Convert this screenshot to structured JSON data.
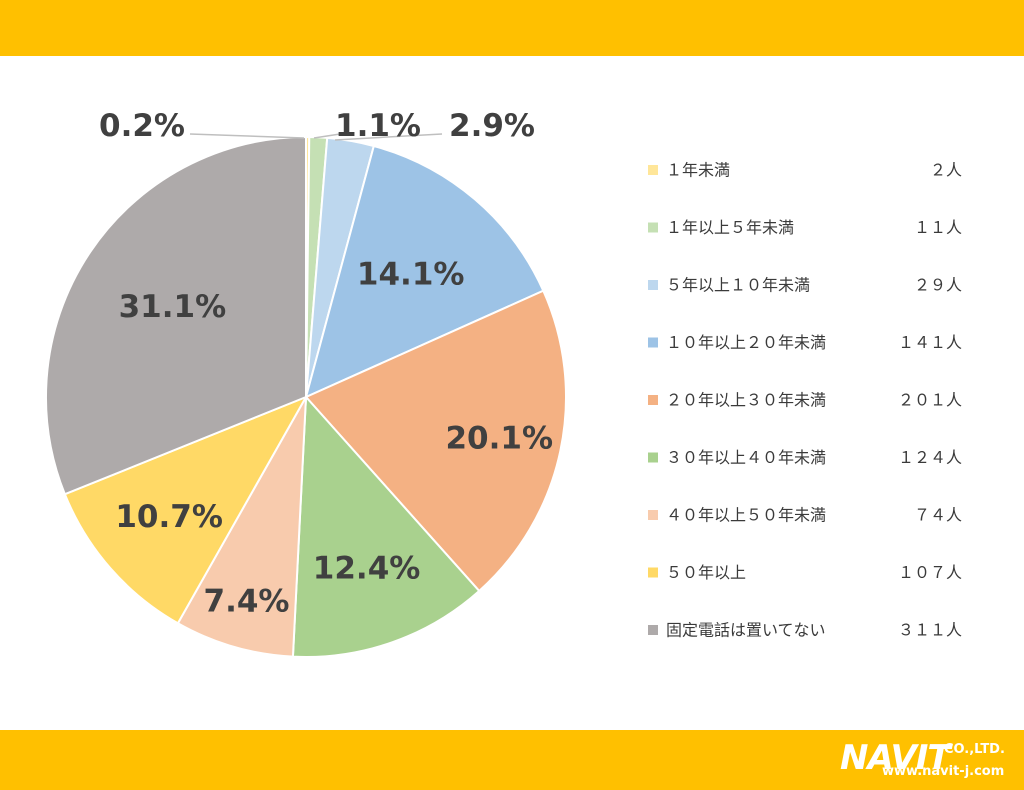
{
  "colors": {
    "band": "#FFC000",
    "slice_border": "#ffffff",
    "label_text": "#404040",
    "leader_line": "#bfbfbf"
  },
  "brand": {
    "logo_text": "NAVIT",
    "company_suffix": "CO.,LTD.",
    "url": "www.navit-j.com"
  },
  "chart_data": {
    "type": "pie",
    "title": "",
    "categories": [
      "１年未満",
      "１年以上５年未満",
      "５年以上１０年未満",
      "１０年以上２０年未満",
      "２０年以上３０年未満",
      "３０年以上４０年未満",
      "４０年以上５０年未満",
      "５０年以上",
      "固定電話は置いてない"
    ],
    "counts": [
      "２人",
      "１１人",
      "２９人",
      "１４１人",
      "２０１人",
      "１２４人",
      "７４人",
      "１０７人",
      "３１１人"
    ],
    "values": [
      2,
      11,
      29,
      141,
      201,
      124,
      74,
      107,
      311
    ],
    "percent_labels": [
      "0.2%",
      "1.1%",
      "2.9%",
      "14.1%",
      "20.1%",
      "12.4%",
      "7.4%",
      "10.7%",
      "31.1%"
    ],
    "colors": [
      "#FFE699",
      "#C5E0B4",
      "#BDD7EE",
      "#9DC3E6",
      "#F4B183",
      "#A9D18E",
      "#F8CBAD",
      "#FFD966",
      "#AEAAAA"
    ],
    "start_angle_deg": 0,
    "direction": "clockwise",
    "legend_position": "right"
  }
}
